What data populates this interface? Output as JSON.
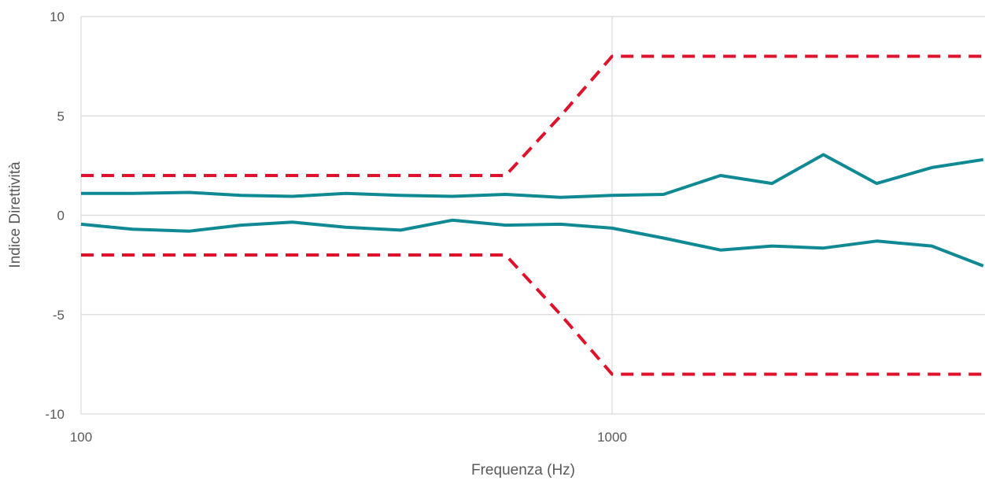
{
  "chart_data": {
    "type": "line",
    "xscale": "log",
    "xlim": [
      100,
      5000
    ],
    "ylim": [
      -10,
      10
    ],
    "xlabel": "Frequenza (Hz)",
    "ylabel": "Indice Direttività",
    "x_ticks": [
      "100",
      "1000"
    ],
    "y_ticks": [
      "10",
      "5",
      "0",
      "-5",
      "-10"
    ],
    "grid": true,
    "legend": "none",
    "colors": {
      "measured": "#0f8a94",
      "limit": "#e0112b",
      "grid": "#d9d9d9",
      "text": "#595959"
    },
    "series": [
      {
        "style": "solid",
        "x": [
          100,
          125,
          160,
          200,
          250,
          315,
          400,
          500,
          630,
          800,
          1000,
          1250,
          1600,
          2000,
          2500,
          3150,
          4000,
          5000
        ],
        "y": [
          1.1,
          1.1,
          1.15,
          1.0,
          0.95,
          1.1,
          1.0,
          0.95,
          1.05,
          0.9,
          1.0,
          1.05,
          2.0,
          1.6,
          3.05,
          1.6,
          2.4,
          2.8
        ]
      },
      {
        "style": "solid",
        "x": [
          100,
          125,
          160,
          200,
          250,
          315,
          400,
          500,
          630,
          800,
          1000,
          1250,
          1600,
          2000,
          2500,
          3150,
          4000,
          5000
        ],
        "y": [
          -0.45,
          -0.7,
          -0.8,
          -0.5,
          -0.35,
          -0.6,
          -0.75,
          -0.25,
          -0.5,
          -0.45,
          -0.65,
          -1.15,
          -1.75,
          -1.55,
          -1.65,
          -1.3,
          -1.55,
          -2.55
        ]
      },
      {
        "style": "dashed",
        "x": [
          100,
          630,
          800,
          1000,
          5000
        ],
        "y": [
          2,
          2,
          5,
          8,
          8
        ]
      },
      {
        "style": "dashed",
        "x": [
          100,
          630,
          800,
          1000,
          5000
        ],
        "y": [
          -2,
          -2,
          -5,
          -8,
          -8
        ]
      }
    ]
  }
}
